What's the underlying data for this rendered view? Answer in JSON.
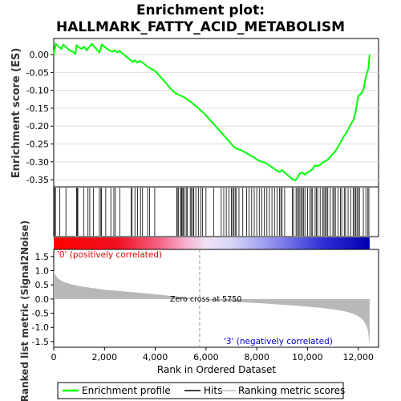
{
  "chart_data": {
    "type": "line",
    "title_line1": "Enrichment plot:",
    "title_line2": "HALLMARK_FATTY_ACID_METABOLISM",
    "es_panel": {
      "ylabel": "Enrichment score (ES)",
      "ylim": [
        -0.37,
        0.045
      ],
      "yticks": [
        0.0,
        -0.05,
        -0.1,
        -0.15,
        -0.2,
        -0.25,
        -0.3,
        -0.35
      ],
      "ytick_labels": [
        "0.00",
        "-0.05",
        "-0.10",
        "-0.15",
        "-0.20",
        "-0.25",
        "-0.30",
        "-0.35"
      ],
      "color": "#00ff00",
      "points": [
        [
          0,
          0.0
        ],
        [
          80,
          0.03
        ],
        [
          200,
          0.022
        ],
        [
          300,
          0.016
        ],
        [
          380,
          0.028
        ],
        [
          500,
          0.02
        ],
        [
          620,
          0.012
        ],
        [
          750,
          0.008
        ],
        [
          850,
          0.002
        ],
        [
          900,
          0.026
        ],
        [
          1000,
          0.02
        ],
        [
          1100,
          0.016
        ],
        [
          1200,
          0.022
        ],
        [
          1300,
          0.012
        ],
        [
          1400,
          0.022
        ],
        [
          1500,
          0.03
        ],
        [
          1600,
          0.022
        ],
        [
          1700,
          0.014
        ],
        [
          1800,
          0.006
        ],
        [
          1900,
          0.028
        ],
        [
          2000,
          0.022
        ],
        [
          2100,
          0.016
        ],
        [
          2200,
          0.012
        ],
        [
          2300,
          0.008
        ],
        [
          2400,
          0.012
        ],
        [
          2500,
          0.006
        ],
        [
          2600,
          0.01
        ],
        [
          2700,
          0.004
        ],
        [
          2800,
          -0.002
        ],
        [
          2900,
          -0.008
        ],
        [
          3000,
          -0.014
        ],
        [
          3100,
          -0.02
        ],
        [
          3200,
          -0.016
        ],
        [
          3300,
          -0.022
        ],
        [
          3400,
          -0.018
        ],
        [
          3500,
          -0.022
        ],
        [
          3600,
          -0.028
        ],
        [
          3700,
          -0.034
        ],
        [
          3800,
          -0.038
        ],
        [
          3900,
          -0.042
        ],
        [
          4000,
          -0.046
        ],
        [
          4100,
          -0.054
        ],
        [
          4200,
          -0.062
        ],
        [
          4300,
          -0.07
        ],
        [
          4400,
          -0.078
        ],
        [
          4500,
          -0.086
        ],
        [
          4600,
          -0.094
        ],
        [
          4700,
          -0.102
        ],
        [
          4800,
          -0.108
        ],
        [
          4900,
          -0.112
        ],
        [
          5000,
          -0.115
        ],
        [
          5100,
          -0.118
        ],
        [
          5200,
          -0.122
        ],
        [
          5300,
          -0.127
        ],
        [
          5400,
          -0.132
        ],
        [
          5500,
          -0.138
        ],
        [
          5600,
          -0.144
        ],
        [
          5700,
          -0.15
        ],
        [
          5800,
          -0.156
        ],
        [
          5900,
          -0.163
        ],
        [
          6000,
          -0.17
        ],
        [
          6100,
          -0.178
        ],
        [
          6200,
          -0.186
        ],
        [
          6300,
          -0.194
        ],
        [
          6400,
          -0.202
        ],
        [
          6500,
          -0.21
        ],
        [
          6600,
          -0.218
        ],
        [
          6700,
          -0.226
        ],
        [
          6800,
          -0.234
        ],
        [
          6900,
          -0.242
        ],
        [
          7000,
          -0.25
        ],
        [
          7100,
          -0.258
        ],
        [
          7200,
          -0.263
        ],
        [
          7300,
          -0.265
        ],
        [
          7400,
          -0.268
        ],
        [
          7500,
          -0.272
        ],
        [
          7600,
          -0.276
        ],
        [
          7700,
          -0.28
        ],
        [
          7800,
          -0.284
        ],
        [
          7900,
          -0.288
        ],
        [
          8000,
          -0.293
        ],
        [
          8100,
          -0.297
        ],
        [
          8200,
          -0.3
        ],
        [
          8300,
          -0.302
        ],
        [
          8400,
          -0.305
        ],
        [
          8500,
          -0.31
        ],
        [
          8600,
          -0.315
        ],
        [
          8700,
          -0.32
        ],
        [
          8800,
          -0.325
        ],
        [
          8900,
          -0.328
        ],
        [
          9000,
          -0.323
        ],
        [
          9100,
          -0.33
        ],
        [
          9200,
          -0.336
        ],
        [
          9300,
          -0.342
        ],
        [
          9400,
          -0.348
        ],
        [
          9500,
          -0.352
        ],
        [
          9600,
          -0.345
        ],
        [
          9700,
          -0.332
        ],
        [
          9800,
          -0.33
        ],
        [
          9900,
          -0.336
        ],
        [
          10000,
          -0.33
        ],
        [
          10100,
          -0.326
        ],
        [
          10200,
          -0.32
        ],
        [
          10300,
          -0.31
        ],
        [
          10400,
          -0.312
        ],
        [
          10500,
          -0.308
        ],
        [
          10600,
          -0.302
        ],
        [
          10700,
          -0.298
        ],
        [
          10800,
          -0.294
        ],
        [
          10900,
          -0.286
        ],
        [
          11000,
          -0.278
        ],
        [
          11100,
          -0.27
        ],
        [
          11200,
          -0.258
        ],
        [
          11300,
          -0.246
        ],
        [
          11400,
          -0.232
        ],
        [
          11500,
          -0.222
        ],
        [
          11600,
          -0.21
        ],
        [
          11700,
          -0.196
        ],
        [
          11800,
          -0.184
        ],
        [
          11900,
          -0.16
        ],
        [
          12000,
          -0.115
        ],
        [
          12100,
          -0.11
        ],
        [
          12200,
          -0.1
        ],
        [
          12300,
          -0.062
        ],
        [
          12400,
          -0.04
        ],
        [
          12450,
          0.0
        ]
      ]
    },
    "hits": {
      "xmax": 12450,
      "positions": [
        30,
        70,
        240,
        480,
        900,
        920,
        950,
        1180,
        1350,
        1420,
        1560,
        1800,
        1860,
        1880,
        2050,
        2250,
        2370,
        2430,
        2600,
        3050,
        3090,
        3200,
        3300,
        3420,
        3500,
        3700,
        3780,
        3980,
        4850,
        4870,
        4920,
        5000,
        5030,
        5060,
        5100,
        5150,
        5220,
        5260,
        5380,
        5420,
        5480,
        5520,
        5600,
        5700,
        5800,
        5860,
        6000,
        6300,
        6600,
        6700,
        6800,
        6900,
        7000,
        7050,
        7100,
        7150,
        7200,
        7300,
        7450,
        7600,
        7700,
        7800,
        7900,
        8000,
        8100,
        8200,
        8300,
        8400,
        8500,
        8600,
        8700,
        8800,
        8900,
        8950,
        9000,
        9100,
        9400,
        9450,
        9550,
        9600,
        9650,
        9700,
        9750,
        9800,
        9850,
        9900,
        10000,
        10100,
        10150,
        10200,
        10300,
        10350,
        10400,
        10500,
        10600,
        10650,
        10700,
        10750,
        10800,
        10900,
        11000,
        11050,
        11100,
        11200,
        11300,
        11350,
        11450,
        11500,
        11600,
        11700,
        11800,
        11850,
        11900,
        11950,
        12000,
        12050,
        12200,
        12300,
        12380,
        12420
      ]
    },
    "metric_panel": {
      "ylabel": "Ranked list metric (Signal2Noise)",
      "ylim": [
        -1.7,
        1.75
      ],
      "yticks": [
        1.5,
        1.0,
        0.5,
        0.0,
        -0.5,
        -1.0,
        -1.5
      ],
      "ytick_labels": [
        "1.5",
        "1.0",
        "0.5",
        "0.0",
        "-0.5",
        "-1.0",
        "-1.5"
      ],
      "curve": [
        [
          0,
          1.0
        ],
        [
          40,
          0.9
        ],
        [
          100,
          0.8
        ],
        [
          200,
          0.7
        ],
        [
          400,
          0.6
        ],
        [
          700,
          0.52
        ],
        [
          1000,
          0.46
        ],
        [
          1500,
          0.39
        ],
        [
          2000,
          0.33
        ],
        [
          2500,
          0.29
        ],
        [
          3000,
          0.25
        ],
        [
          3500,
          0.21
        ],
        [
          4000,
          0.17
        ],
        [
          4500,
          0.12
        ],
        [
          5000,
          0.08
        ],
        [
          5500,
          0.03
        ],
        [
          5750,
          0.0
        ],
        [
          6000,
          -0.03
        ],
        [
          6500,
          -0.06
        ],
        [
          7000,
          -0.09
        ],
        [
          7500,
          -0.12
        ],
        [
          8000,
          -0.14
        ],
        [
          8500,
          -0.17
        ],
        [
          9000,
          -0.2
        ],
        [
          9500,
          -0.23
        ],
        [
          10000,
          -0.27
        ],
        [
          10500,
          -0.31
        ],
        [
          11000,
          -0.36
        ],
        [
          11500,
          -0.44
        ],
        [
          11800,
          -0.52
        ],
        [
          12000,
          -0.6
        ],
        [
          12200,
          -0.75
        ],
        [
          12300,
          -0.9
        ],
        [
          12380,
          -1.1
        ],
        [
          12420,
          -1.4
        ],
        [
          12450,
          -1.65
        ]
      ],
      "zero_cross": 5750,
      "zero_cross_label": "Zero cross at 5750",
      "pos_label": "'0' (positively correlated)",
      "neg_label": "'3' (negatively correlated)"
    },
    "x_axis": {
      "xlabel": "Rank in Ordered Dataset",
      "xlim": [
        0,
        12800
      ],
      "xticks": [
        0,
        2000,
        4000,
        6000,
        8000,
        10000,
        12000
      ],
      "xtick_labels": [
        "0",
        "2,000",
        "4,000",
        "6,000",
        "8,000",
        "10,000",
        "12,000"
      ]
    },
    "legend": {
      "items": [
        {
          "label": "Enrichment profile",
          "color": "#00ff00"
        },
        {
          "label": "Hits",
          "color": "#000000"
        },
        {
          "label": "Ranking metric scores",
          "color": "#bbbbbb"
        }
      ]
    }
  }
}
